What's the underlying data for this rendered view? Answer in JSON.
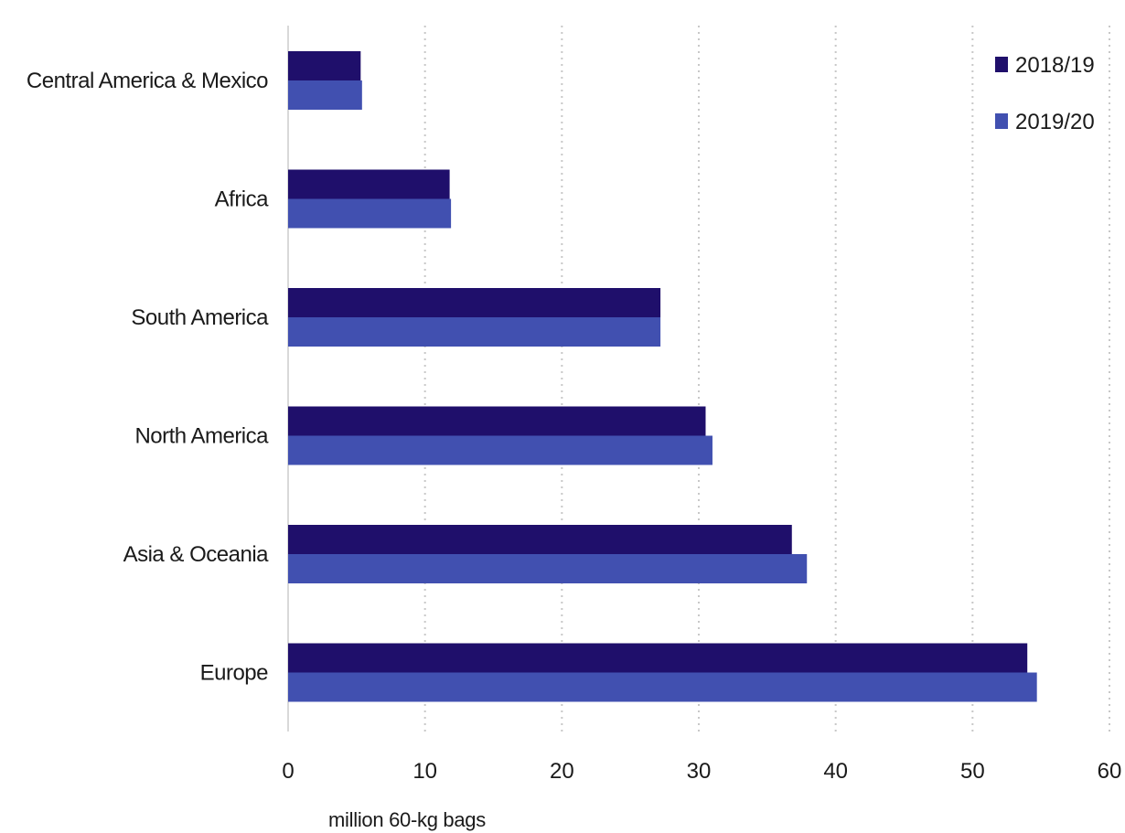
{
  "chart_data": {
    "type": "bar",
    "orientation": "horizontal",
    "categories": [
      "Central America & Mexico",
      "Africa",
      "South America",
      "North America",
      "Asia & Oceania",
      "Europe"
    ],
    "series": [
      {
        "name": "2018/19",
        "values": [
          5.3,
          11.8,
          27.2,
          30.5,
          36.8,
          54.0
        ],
        "color": "#1f0f6b"
      },
      {
        "name": "2019/20",
        "values": [
          5.4,
          11.9,
          27.2,
          31.0,
          37.9,
          54.7
        ],
        "color": "#4150b0"
      }
    ],
    "xlabel": "million 60-kg bags",
    "xlim": [
      0,
      60
    ],
    "xticks": [
      0,
      10,
      20,
      30,
      40,
      50,
      60
    ],
    "grid": "vertical dotted",
    "legend_position": "top-right"
  }
}
